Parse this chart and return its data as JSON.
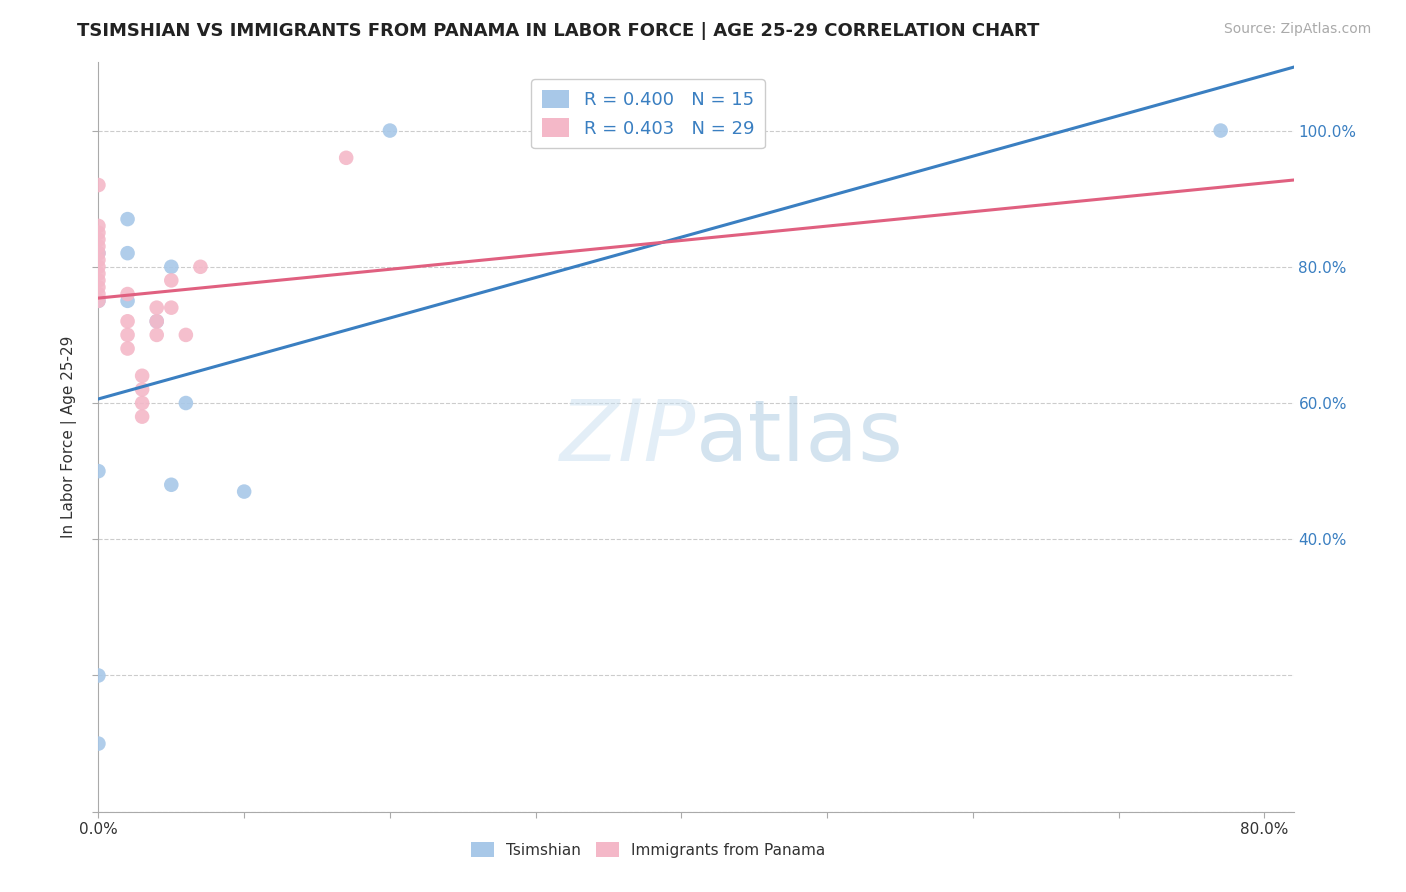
{
  "title": "TSIMSHIAN VS IMMIGRANTS FROM PANAMA IN LABOR FORCE | AGE 25-29 CORRELATION CHART",
  "source": "Source: ZipAtlas.com",
  "ylabel": "In Labor Force | Age 25-29",
  "watermark_zip": "ZIP",
  "watermark_atlas": "atlas",
  "xlim": [
    0.0,
    0.82
  ],
  "ylim": [
    0.0,
    1.1
  ],
  "xtick_values": [
    0.0,
    0.1,
    0.2,
    0.3,
    0.4,
    0.5,
    0.6,
    0.7,
    0.8
  ],
  "xtick_labels": [
    "0.0%",
    "",
    "",
    "",
    "",
    "",
    "",
    "",
    "80.0%"
  ],
  "ytick_values": [
    0.0,
    0.2,
    0.4,
    0.6,
    0.8,
    1.0
  ],
  "ytick_labels_right": [
    "",
    "",
    "40.0%",
    "60.0%",
    "80.0%",
    "100.0%"
  ],
  "grid_color": "#cccccc",
  "background_color": "#ffffff",
  "tsimshian_color": "#a8c8e8",
  "panama_color": "#f4b8c8",
  "tsimshian_line_color": "#3a7fc1",
  "panama_line_color": "#e06080",
  "tsimshian_R": 0.4,
  "tsimshian_N": 15,
  "panama_R": 0.403,
  "panama_N": 29,
  "tsimshian_x": [
    0.0,
    0.0,
    0.0,
    0.0,
    0.0,
    0.02,
    0.02,
    0.02,
    0.04,
    0.05,
    0.05,
    0.06,
    0.1,
    0.2,
    0.77
  ],
  "tsimshian_y": [
    0.2,
    0.1,
    0.5,
    0.75,
    0.82,
    0.82,
    0.87,
    0.75,
    0.72,
    0.8,
    0.48,
    0.6,
    0.47,
    1.0,
    1.0
  ],
  "panama_x": [
    0.0,
    0.0,
    0.0,
    0.0,
    0.0,
    0.0,
    0.0,
    0.0,
    0.0,
    0.0,
    0.0,
    0.0,
    0.0,
    0.02,
    0.02,
    0.02,
    0.02,
    0.03,
    0.03,
    0.03,
    0.03,
    0.04,
    0.04,
    0.04,
    0.05,
    0.05,
    0.06,
    0.07,
    0.17
  ],
  "panama_y": [
    0.75,
    0.76,
    0.77,
    0.78,
    0.79,
    0.8,
    0.81,
    0.82,
    0.83,
    0.84,
    0.85,
    0.86,
    0.92,
    0.68,
    0.7,
    0.72,
    0.76,
    0.58,
    0.6,
    0.62,
    0.64,
    0.7,
    0.72,
    0.74,
    0.74,
    0.78,
    0.7,
    0.8,
    0.96
  ],
  "legend_tsimshian": "Tsimshian",
  "legend_panama": "Immigrants from Panama",
  "title_fontsize": 13,
  "source_fontsize": 10,
  "tick_fontsize": 11,
  "legend_fontsize": 13
}
